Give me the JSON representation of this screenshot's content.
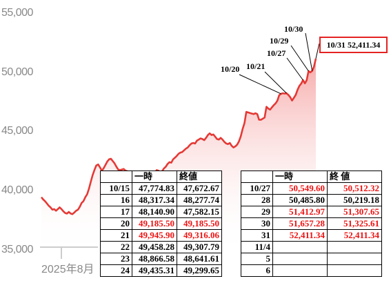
{
  "chart_data": {
    "type": "area",
    "title": "",
    "xlabel": "",
    "ylabel": "",
    "ylim": [
      35000,
      56500
    ],
    "y_ticks": [
      "55,000",
      "50,000",
      "45,000",
      "40,000",
      "35,000"
    ],
    "y_tick_values": [
      55000,
      50000,
      45000,
      40000,
      35000
    ],
    "x_tick_label": "2025年8月",
    "grid": false,
    "legend": "none",
    "line_color": "#e53935",
    "fill_color": "#f7b6b6",
    "series": [
      {
        "values": [
          40150,
          39950,
          39800,
          39600,
          39400,
          39250,
          39050,
          39100,
          38950,
          39100,
          39250,
          39100,
          38900,
          38750,
          38700,
          38850,
          38700,
          38650,
          38800,
          38950,
          39050,
          39300,
          39650,
          39800,
          40150,
          40400,
          40900,
          41500,
          42100,
          42550,
          42950,
          43050,
          42800,
          42500,
          42700,
          43000,
          43300,
          43500,
          43550,
          43350,
          43150,
          42850,
          42600,
          42550,
          42600,
          42650,
          42500,
          42450,
          42400,
          42450,
          42300,
          42250,
          42100,
          42000,
          42200,
          42100,
          41950,
          41850,
          41700,
          41750,
          41800,
          42050,
          42300,
          42550,
          42500,
          42350,
          42450,
          42700,
          42850,
          43100,
          43250,
          43200,
          43500,
          43650,
          43800,
          44000,
          44100,
          44150,
          44300,
          44450,
          44550,
          44750,
          44900,
          44950,
          44900,
          45150,
          45250,
          45350,
          45300,
          45200,
          45400,
          45650,
          45800,
          45650,
          45700,
          45500,
          45300,
          45250,
          45400,
          45250,
          45050,
          44900,
          44850,
          44950,
          44700,
          44550,
          44650,
          44800,
          45100,
          45550,
          46200,
          46700,
          47700,
          47650,
          47600,
          47550,
          47500,
          47582,
          47500,
          47000,
          47000,
          47100,
          47200,
          48150,
          48000,
          47900,
          48100,
          48300,
          48450,
          48700,
          49185,
          49300,
          49350,
          49316,
          49350,
          49200,
          49000,
          48700,
          48950,
          49200,
          49650,
          50000,
          50200,
          50512,
          50219,
          50500,
          51307,
          51200,
          51325,
          51700,
          52411
        ]
      }
    ],
    "annotations": [
      {
        "label": "10/20"
      },
      {
        "label": "10/21"
      },
      {
        "label": "10/27"
      },
      {
        "label": "10/29"
      },
      {
        "label": "10/30"
      },
      {
        "label": "10/31 52,411.34"
      }
    ]
  },
  "tables": {
    "left": {
      "headers": [
        "",
        "一時",
        "終値"
      ],
      "rows": [
        {
          "date": "10/15",
          "high": "47,774.83",
          "close": "47,672.67",
          "red": false
        },
        {
          "date": "16",
          "high": "48,317.34",
          "close": "48,277.74",
          "red": false
        },
        {
          "date": "17",
          "high": "48,140.90",
          "close": "47,582.15",
          "red": false
        },
        {
          "date": "20",
          "high": "49,185.50",
          "close": "49,185.50",
          "red": true
        },
        {
          "date": "21",
          "high": "49,945.90",
          "close": "49,316.06",
          "red": true
        },
        {
          "date": "22",
          "high": "49,458.28",
          "close": "49,307.79",
          "red": false
        },
        {
          "date": "23",
          "high": "48,866.58",
          "close": "48,641.61",
          "red": false
        },
        {
          "date": "24",
          "high": "49,435.31",
          "close": "49,299.65",
          "red": false
        }
      ]
    },
    "right": {
      "headers": [
        "",
        "一時",
        "終 値"
      ],
      "rows": [
        {
          "date": "10/27",
          "high": "50,549.60",
          "close": "50,512.32",
          "red": true
        },
        {
          "date": "28",
          "high": "50,485.80",
          "close": "50,219.18",
          "red": false
        },
        {
          "date": "29",
          "high": "51,412.97",
          "close": "51,307.65",
          "red": true
        },
        {
          "date": "30",
          "high": "51,657.28",
          "close": "51,325.61",
          "red": true
        },
        {
          "date": "31",
          "high": "52,411.34",
          "close": "52,411.34",
          "red": true
        },
        {
          "date": "11/4",
          "high": "",
          "close": "",
          "red": false
        },
        {
          "date": "5",
          "high": "",
          "close": "",
          "red": false
        },
        {
          "date": "6",
          "high": "",
          "close": "",
          "red": false
        }
      ]
    }
  }
}
